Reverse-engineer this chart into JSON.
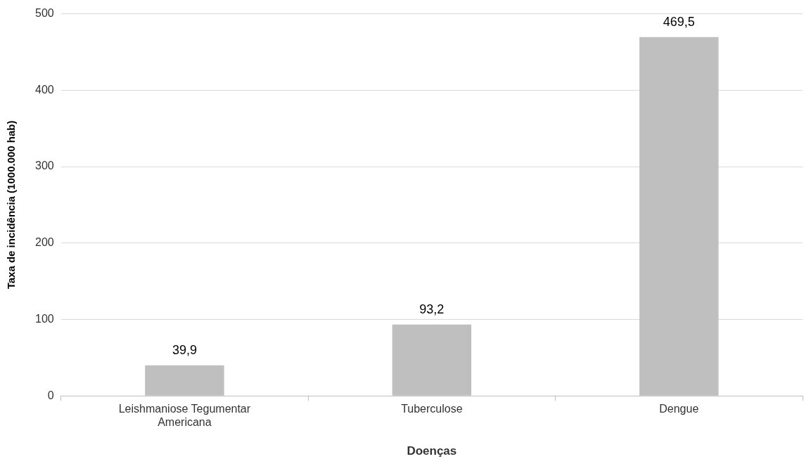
{
  "chart_data": {
    "type": "bar",
    "xlabel": "Doenças",
    "ylabel": "Taxa de incidência (1000.000 hab)",
    "categories": [
      "Leishmaniose Tegumentar Americana",
      "Tuberculose",
      "Dengue"
    ],
    "values": [
      39.9,
      93.2,
      469.5
    ],
    "value_labels": [
      "39,9",
      "93,2",
      "469,5"
    ],
    "color": "#bfbfbf",
    "ylim": [
      0,
      500
    ],
    "yticks": [
      0,
      100,
      200,
      300,
      400,
      500
    ],
    "grid": "y",
    "legend": false
  }
}
